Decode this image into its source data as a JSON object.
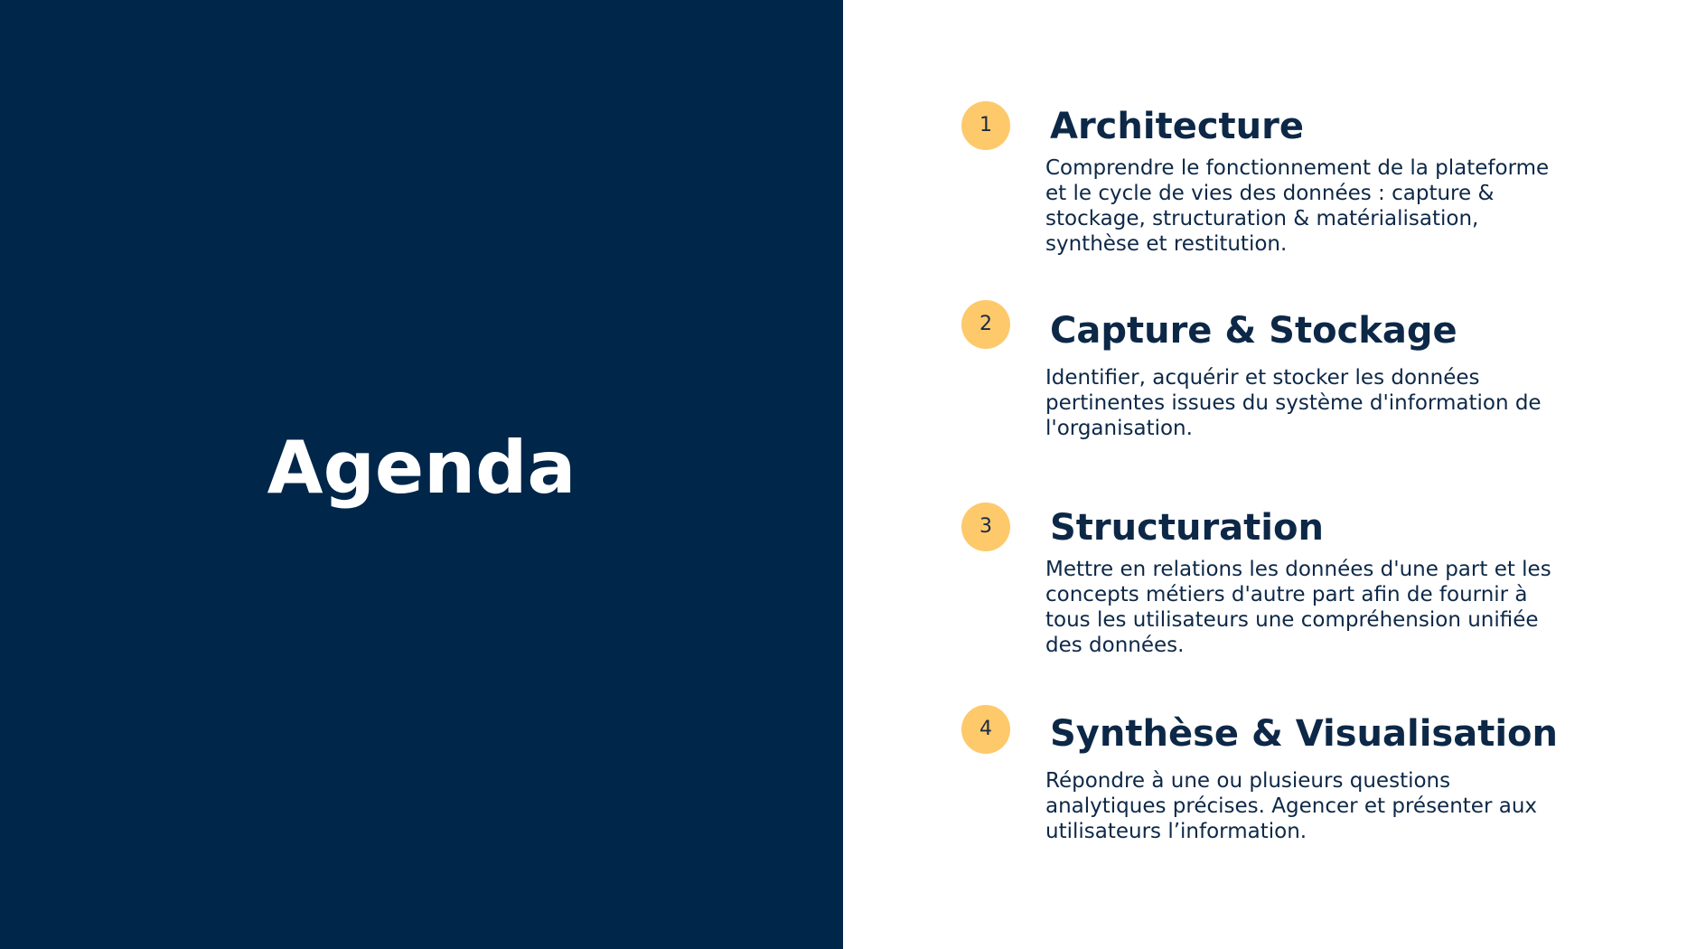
{
  "slide": {
    "title": "Agenda",
    "items": [
      {
        "number": "1",
        "title": "Architecture",
        "description": "Comprendre le fonctionnement de la plateforme et le cycle de vies des données : capture & stockage, structuration & matérialisation, synthèse et restitution."
      },
      {
        "number": "2",
        "title": "Capture & Stockage",
        "description": "Identifier, acquérir et stocker les données pertinentes issues du système d'information de l'organisation."
      },
      {
        "number": "3",
        "title": "Structuration",
        "description": "Mettre en relations les données d'une part et les concepts métiers d'autre part afin de fournir à tous les utilisateurs une compréhension unifiée des données."
      },
      {
        "number": "4",
        "title": "Synthèse & Visualisation",
        "description": "Répondre à une ou plusieurs questions analytiques précises. Agencer et présenter aux utilisateurs l’information."
      }
    ]
  },
  "colors": {
    "panel": "#00264a",
    "badge": "#fdc96b",
    "text": "#0d2847"
  }
}
